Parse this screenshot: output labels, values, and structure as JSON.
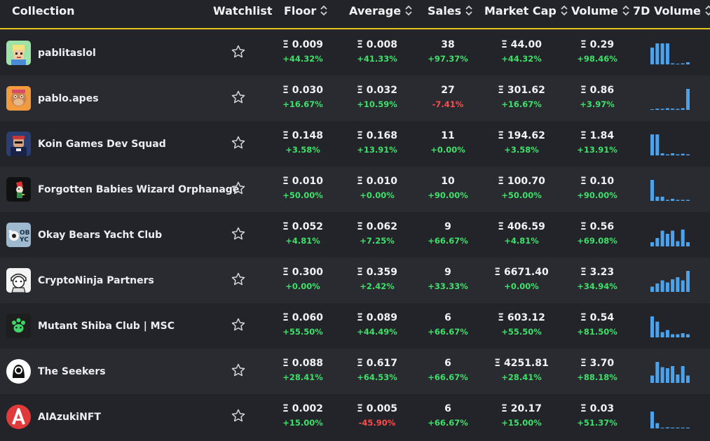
{
  "headers": {
    "collection": "Collection",
    "watchlist": "Watchlist",
    "floor": "Floor",
    "average": "Average",
    "sales": "Sales",
    "market_cap": "Market Cap",
    "volume": "Volume",
    "volume_7d": "7D Volume"
  },
  "colors": {
    "accent": "#e5c31f",
    "positive": "#3fe06a",
    "negative": "#ff4b4b",
    "spark": "#4aa3ec"
  },
  "rows": [
    {
      "name": "pablitaslol",
      "logo": "pixel-face-logo",
      "floor": "Ξ 0.009",
      "floor_chg": "+44.32%",
      "avg": "Ξ 0.008",
      "avg_chg": "+41.33%",
      "sales": "38",
      "sales_chg": "+97.37%",
      "mcap": "Ξ 44.00",
      "mcap_chg": "+44.32%",
      "vol": "Ξ 0.29",
      "vol_chg": "+98.46%",
      "spark": [
        0.8,
        1,
        1,
        1,
        0.05,
        0,
        0.05,
        0.1
      ]
    },
    {
      "name": "pablo.apes",
      "logo": "ape-logo",
      "floor": "Ξ 0.030",
      "floor_chg": "+16.67%",
      "avg": "Ξ 0.032",
      "avg_chg": "+10.59%",
      "sales": "27",
      "sales_chg": "-7.41%",
      "mcap": "Ξ 301.62",
      "mcap_chg": "+16.67%",
      "vol": "Ξ 0.86",
      "vol_chg": "+3.97%",
      "spark": [
        0.03,
        0.06,
        0.05,
        0.08,
        0.06,
        0.05,
        0.08,
        1
      ]
    },
    {
      "name": "Koin Games Dev Squad",
      "logo": "dev-squad-logo",
      "floor": "Ξ 0.148",
      "floor_chg": "+3.58%",
      "avg": "Ξ 0.168",
      "avg_chg": "+13.91%",
      "sales": "11",
      "sales_chg": "+0.00%",
      "mcap": "Ξ 194.62",
      "mcap_chg": "+3.58%",
      "vol": "Ξ 1.84",
      "vol_chg": "+13.91%",
      "spark": [
        1,
        1,
        0.1,
        0.05,
        0.1,
        0.05,
        0.08,
        0.05
      ]
    },
    {
      "name": "Forgotten Babies Wizard Orphanage",
      "logo": "wizard-logo",
      "floor": "Ξ 0.010",
      "floor_chg": "+50.00%",
      "avg": "Ξ 0.010",
      "avg_chg": "+0.00%",
      "sales": "10",
      "sales_chg": "+90.00%",
      "mcap": "Ξ 100.70",
      "mcap_chg": "+50.00%",
      "vol": "Ξ 0.10",
      "vol_chg": "+90.00%",
      "spark": [
        1,
        0.2,
        0.2,
        0.05,
        0.1,
        0.05,
        0.05,
        0.05
      ]
    },
    {
      "name": "Okay Bears Yacht Club",
      "logo": "oby-logo",
      "floor": "Ξ 0.052",
      "floor_chg": "+4.81%",
      "avg": "Ξ 0.062",
      "avg_chg": "+7.25%",
      "sales": "9",
      "sales_chg": "+66.67%",
      "mcap": "Ξ 406.59",
      "mcap_chg": "+4.81%",
      "vol": "Ξ 0.56",
      "vol_chg": "+69.08%",
      "spark": [
        0.2,
        0.4,
        0.75,
        0.6,
        0.75,
        0.25,
        0.8,
        0.2
      ]
    },
    {
      "name": "CryptoNinja Partners",
      "logo": "ninja-logo",
      "floor": "Ξ 0.300",
      "floor_chg": "+0.00%",
      "avg": "Ξ 0.359",
      "avg_chg": "+2.42%",
      "sales": "9",
      "sales_chg": "+33.33%",
      "mcap": "Ξ 6671.40",
      "mcap_chg": "+0.00%",
      "vol": "Ξ 3.23",
      "vol_chg": "+34.94%",
      "spark": [
        0.25,
        0.4,
        0.55,
        0.45,
        0.6,
        0.7,
        0.55,
        1
      ]
    },
    {
      "name": "Mutant Shiba Club | MSC",
      "logo": "paw-logo",
      "floor": "Ξ 0.060",
      "floor_chg": "+55.50%",
      "avg": "Ξ 0.089",
      "avg_chg": "+44.49%",
      "sales": "6",
      "sales_chg": "+66.67%",
      "mcap": "Ξ 603.12",
      "mcap_chg": "+55.50%",
      "vol": "Ξ 0.54",
      "vol_chg": "+81.50%",
      "spark": [
        1,
        0.75,
        0.25,
        0.35,
        0.15,
        0.15,
        0.2,
        0.15
      ]
    },
    {
      "name": "The Seekers",
      "logo": "seekers-logo",
      "floor": "Ξ 0.088",
      "floor_chg": "+28.41%",
      "avg": "Ξ 0.617",
      "avg_chg": "+64.53%",
      "sales": "6",
      "sales_chg": "+66.67%",
      "mcap": "Ξ 4251.81",
      "mcap_chg": "+28.41%",
      "vol": "Ξ 3.70",
      "vol_chg": "+88.18%",
      "spark": [
        0.35,
        1,
        0.75,
        0.7,
        0.8,
        0.4,
        0.8,
        0.35
      ]
    },
    {
      "name": "AIAzukiNFT",
      "logo": "azuki-logo",
      "floor": "Ξ 0.002",
      "floor_chg": "+15.00%",
      "avg": "Ξ 0.005",
      "avg_chg": "-45.90%",
      "sales": "6",
      "sales_chg": "+66.67%",
      "mcap": "Ξ 20.17",
      "mcap_chg": "+15.00%",
      "vol": "Ξ 0.03",
      "vol_chg": "+51.37%",
      "spark": [
        0.8,
        0.25,
        0,
        0.05,
        0.04,
        0.04,
        0.04,
        0.04
      ]
    }
  ]
}
